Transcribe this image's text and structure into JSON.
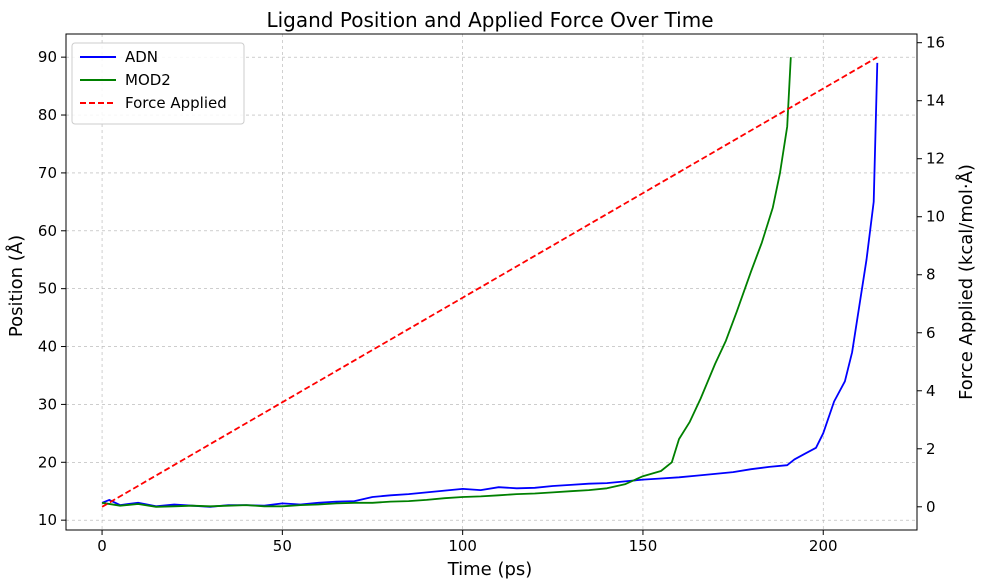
{
  "chart_data": {
    "type": "line",
    "title": "Ligand Position and Applied Force Over Time",
    "xlabel": "Time (ps)",
    "ylabel": "Position (Å)",
    "y2label": "Force Applied (kcal/mol·Å)",
    "xlim": [
      -10,
      226
    ],
    "ylim": [
      8.3,
      94
    ],
    "y2lim": [
      -0.8,
      16.3
    ],
    "xticks": [
      0,
      50,
      100,
      150,
      200
    ],
    "yticks": [
      10,
      20,
      30,
      40,
      50,
      60,
      70,
      80,
      90
    ],
    "y2ticks": [
      0,
      2,
      4,
      6,
      8,
      10,
      12,
      14,
      16
    ],
    "grid": true,
    "legend_position": "top-left",
    "series": [
      {
        "name": "ADN",
        "axis": "left",
        "color": "#0000ff",
        "style": "solid",
        "x": [
          0,
          2,
          5,
          10,
          15,
          20,
          25,
          30,
          35,
          40,
          45,
          50,
          55,
          60,
          65,
          70,
          75,
          80,
          85,
          90,
          95,
          100,
          105,
          110,
          115,
          120,
          125,
          130,
          135,
          140,
          145,
          150,
          155,
          160,
          165,
          170,
          175,
          180,
          185,
          190,
          192,
          195,
          198,
          200,
          203,
          206,
          208,
          210,
          212,
          214,
          215
        ],
        "y": [
          13.0,
          13.5,
          12.6,
          13.0,
          12.4,
          12.7,
          12.5,
          12.3,
          12.6,
          12.6,
          12.5,
          12.9,
          12.7,
          13.0,
          13.2,
          13.3,
          14.0,
          14.3,
          14.5,
          14.8,
          15.1,
          15.4,
          15.2,
          15.7,
          15.5,
          15.6,
          15.9,
          16.1,
          16.3,
          16.4,
          16.7,
          17.0,
          17.2,
          17.4,
          17.7,
          18.0,
          18.3,
          18.8,
          19.2,
          19.5,
          20.5,
          21.5,
          22.5,
          25.0,
          30.5,
          34.0,
          39.0,
          47.0,
          55.0,
          65.0,
          89.0
        ]
      },
      {
        "name": "MOD2",
        "axis": "left",
        "color": "#008000",
        "style": "solid",
        "x": [
          0,
          5,
          10,
          15,
          20,
          25,
          30,
          35,
          40,
          45,
          50,
          55,
          60,
          65,
          70,
          75,
          80,
          85,
          90,
          95,
          100,
          105,
          110,
          115,
          120,
          125,
          130,
          135,
          140,
          145,
          150,
          155,
          158,
          160,
          163,
          166,
          170,
          173,
          176,
          180,
          183,
          186,
          188,
          190,
          191
        ],
        "y": [
          13.0,
          12.5,
          12.8,
          12.3,
          12.4,
          12.5,
          12.4,
          12.5,
          12.6,
          12.4,
          12.4,
          12.6,
          12.7,
          12.9,
          13.0,
          13.0,
          13.2,
          13.3,
          13.5,
          13.8,
          14.0,
          14.1,
          14.3,
          14.5,
          14.6,
          14.8,
          15.0,
          15.2,
          15.5,
          16.2,
          17.6,
          18.5,
          20.0,
          24.0,
          27.0,
          31.0,
          37.0,
          41.0,
          46.0,
          53.0,
          58.0,
          64.0,
          70.0,
          78.0,
          90.0
        ]
      },
      {
        "name": "Force Applied",
        "axis": "right",
        "color": "#ff0000",
        "style": "dashed",
        "x": [
          0,
          215
        ],
        "y": [
          0,
          15.5
        ]
      }
    ]
  }
}
